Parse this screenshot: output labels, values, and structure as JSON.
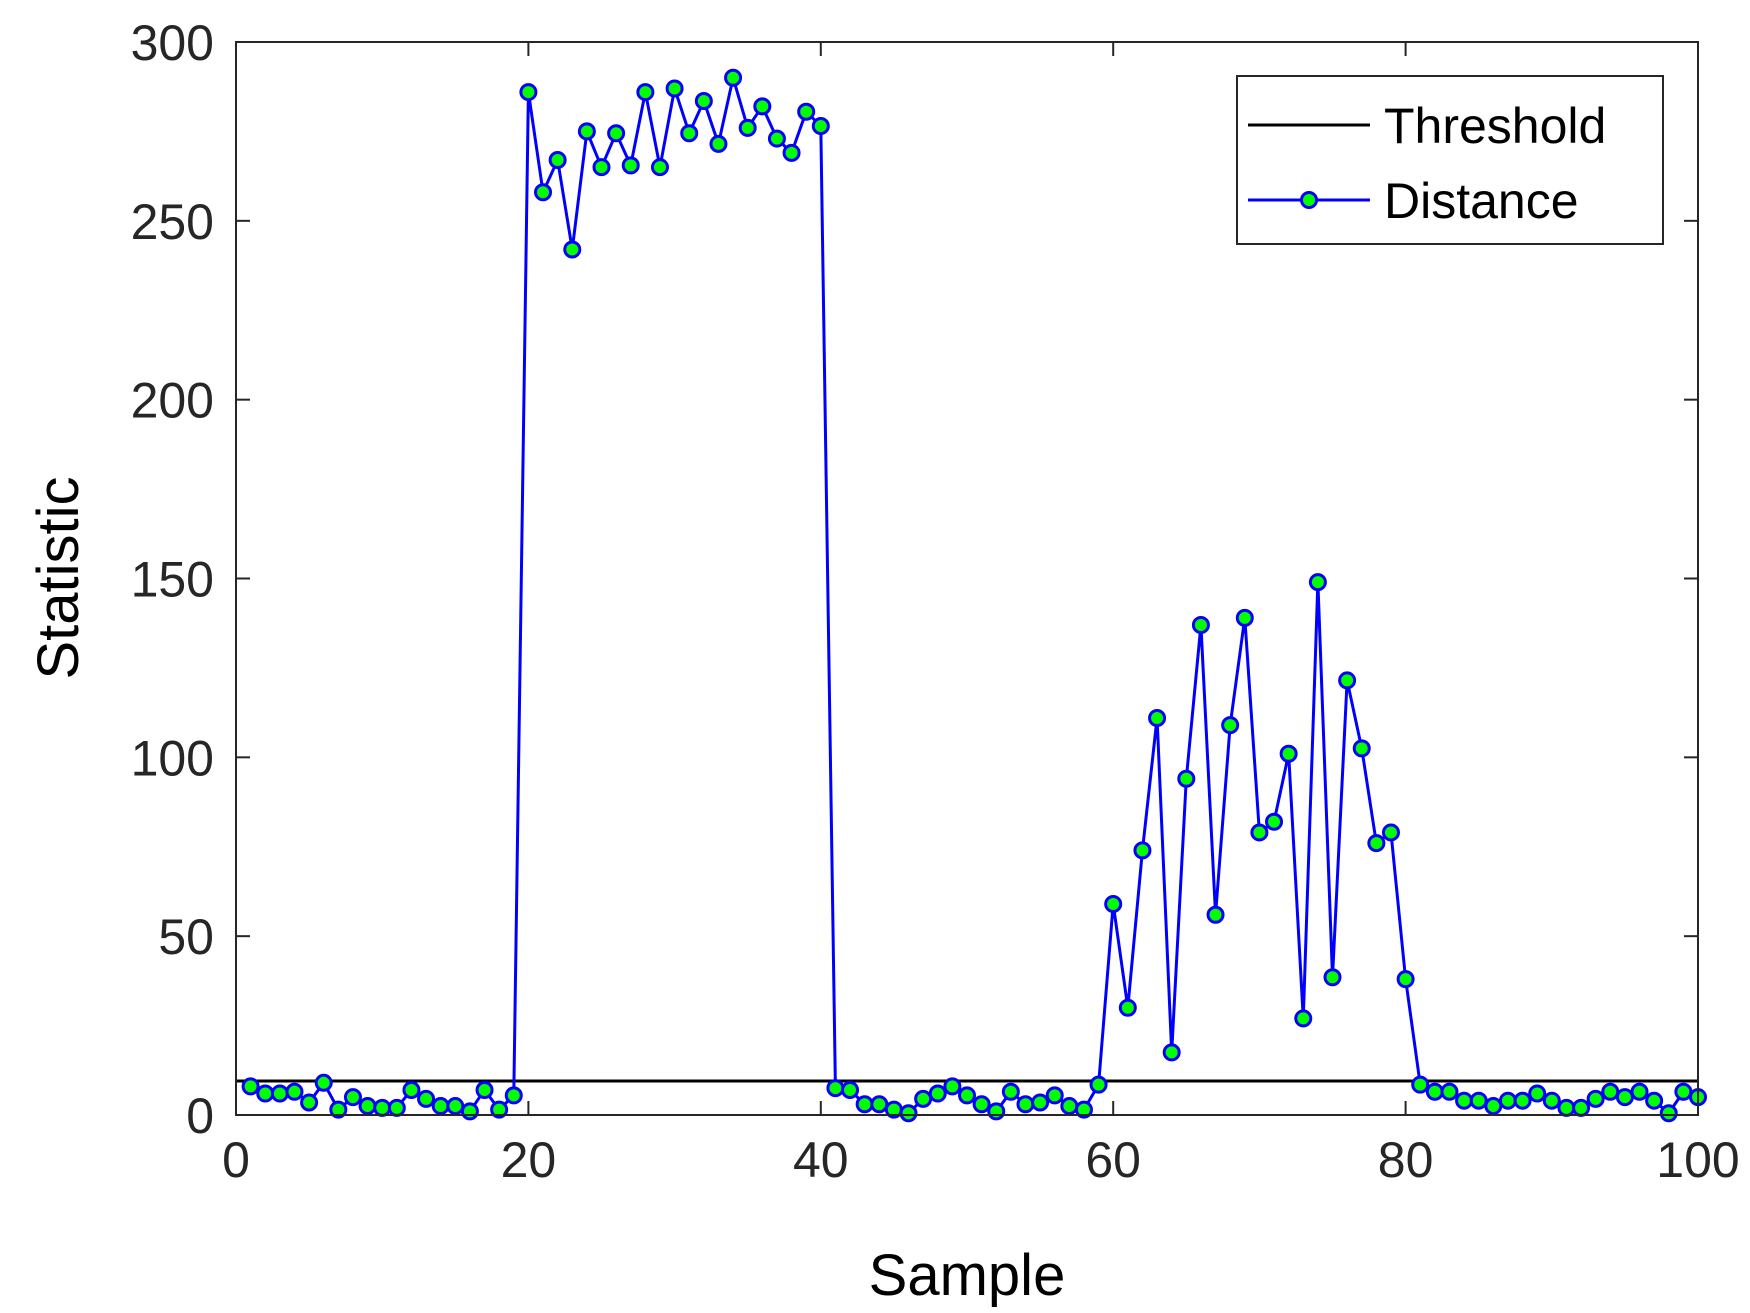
{
  "chart_data": {
    "type": "line",
    "xlabel": "Sample",
    "ylabel": "Statistic",
    "xlim": [
      0,
      100
    ],
    "ylim": [
      0,
      300
    ],
    "xticks": [
      "0",
      "20",
      "40",
      "60",
      "80",
      "100"
    ],
    "yticks": [
      "0",
      "50",
      "100",
      "150",
      "200",
      "250",
      "300"
    ],
    "grid": false,
    "legend": "top-right",
    "series": [
      {
        "name": "Threshold",
        "color": "#000000",
        "marker": "none",
        "x": [
          0,
          100
        ],
        "y": [
          9.5,
          9.5
        ]
      },
      {
        "name": "Distance",
        "color": "#0000ff",
        "marker": "circle",
        "marker_fill": "#00ff00",
        "x": [
          1,
          2,
          3,
          4,
          5,
          6,
          7,
          8,
          9,
          10,
          11,
          12,
          13,
          14,
          15,
          16,
          17,
          18,
          19,
          20,
          21,
          22,
          23,
          24,
          25,
          26,
          27,
          28,
          29,
          30,
          31,
          32,
          33,
          34,
          35,
          36,
          37,
          38,
          39,
          40,
          41,
          42,
          43,
          44,
          45,
          46,
          47,
          48,
          49,
          50,
          51,
          52,
          53,
          54,
          55,
          56,
          57,
          58,
          59,
          60,
          61,
          62,
          63,
          64,
          65,
          66,
          67,
          68,
          69,
          70,
          71,
          72,
          73,
          74,
          75,
          76,
          77,
          78,
          79,
          80,
          81,
          82,
          83,
          84,
          85,
          86,
          87,
          88,
          89,
          90,
          91,
          92,
          93,
          94,
          95,
          96,
          97,
          98,
          99,
          100
        ],
        "y": [
          8,
          6,
          6,
          6.5,
          3.5,
          9,
          1.5,
          5,
          2.5,
          2,
          2,
          7,
          4.5,
          2.5,
          2.5,
          1,
          7,
          1.5,
          5.5,
          286,
          258,
          267,
          242,
          275,
          265,
          274.5,
          265.5,
          286,
          265,
          287,
          274.5,
          283.5,
          271.5,
          290,
          276,
          282,
          273,
          269,
          280.5,
          276.5,
          7.5,
          7,
          3,
          3,
          1.5,
          0.5,
          4.5,
          6,
          8,
          5.5,
          3,
          1,
          6.5,
          3,
          3.5,
          5.5,
          2.5,
          1.5,
          8.5,
          59,
          30,
          74,
          111,
          17.5,
          94,
          137,
          56,
          109,
          139,
          79,
          82,
          101,
          27,
          149,
          38.5,
          121.5,
          102.5,
          76,
          79,
          38,
          8.5,
          6.5,
          6.5,
          4,
          4,
          2.5,
          4,
          4,
          6,
          4,
          2,
          2,
          4.5,
          6.5,
          5,
          6.5,
          4,
          0.5,
          6.5,
          5
        ]
      }
    ]
  }
}
